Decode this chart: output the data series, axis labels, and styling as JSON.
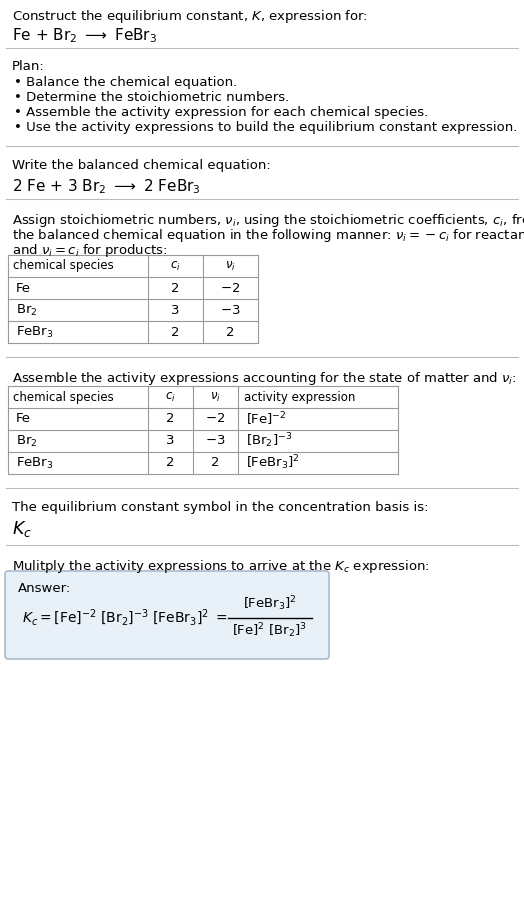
{
  "title_line1": "Construct the equilibrium constant, $K$, expression for:",
  "title_line2": "Fe + Br$_2$ $\\longrightarrow$ FeBr$_3$",
  "plan_header": "Plan:",
  "plan_items": [
    "Balance the chemical equation.",
    "Determine the stoichiometric numbers.",
    "Assemble the activity expression for each chemical species.",
    "Use the activity expressions to build the equilibrium constant expression."
  ],
  "balanced_header": "Write the balanced chemical equation:",
  "balanced_eq": "2 Fe + 3 Br$_2$ $\\longrightarrow$ 2 FeBr$_3$",
  "assign_header1": "Assign stoichiometric numbers, $\\nu_i$, using the stoichiometric coefficients, $c_i$, from",
  "assign_header2": "the balanced chemical equation in the following manner: $\\nu_i = -c_i$ for reactants",
  "assign_header3": "and $\\nu_i = c_i$ for products:",
  "table1_headers": [
    "chemical species",
    "$c_i$",
    "$\\nu_i$"
  ],
  "table1_rows": [
    [
      "Fe",
      "2",
      "$-2$"
    ],
    [
      "Br$_2$",
      "3",
      "$-3$"
    ],
    [
      "FeBr$_3$",
      "2",
      "2"
    ]
  ],
  "assemble_header": "Assemble the activity expressions accounting for the state of matter and $\\nu_i$:",
  "table2_headers": [
    "chemical species",
    "$c_i$",
    "$\\nu_i$",
    "activity expression"
  ],
  "table2_rows": [
    [
      "Fe",
      "2",
      "$-2$",
      "[Fe]$^{-2}$"
    ],
    [
      "Br$_2$",
      "3",
      "$-3$",
      "[Br$_2$]$^{-3}$"
    ],
    [
      "FeBr$_3$",
      "2",
      "2",
      "[FeBr$_3$]$^{2}$"
    ]
  ],
  "kc_header": "The equilibrium constant symbol in the concentration basis is:",
  "kc_symbol": "$K_c$",
  "multiply_header": "Mulitply the activity expressions to arrive at the $K_c$ expression:",
  "answer_label": "Answer:",
  "bg_color": "#ffffff",
  "text_color": "#000000",
  "answer_box_edge": "#aabbcc",
  "answer_box_face": "#e8f0f8",
  "separator_color": "#bbbbbb",
  "font_size": 9.5
}
